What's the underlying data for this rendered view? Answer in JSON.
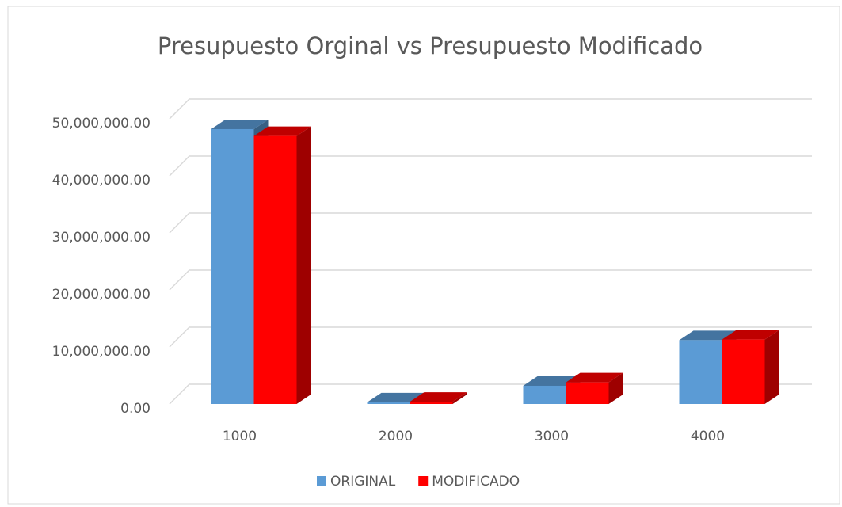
{
  "chart_data": {
    "type": "bar3d",
    "title": "Presupuesto Orginal vs Presupuesto Modificado",
    "categories": [
      "1000",
      "2000",
      "3000",
      "4000"
    ],
    "series": [
      {
        "name": "ORIGINAL",
        "color": "#5b9bd5",
        "values": [
          48200000,
          300000,
          3200000,
          11200000
        ]
      },
      {
        "name": "MODIFICADO",
        "color": "#ff0000",
        "values": [
          47000000,
          400000,
          3800000,
          11300000
        ]
      }
    ],
    "ylim": [
      0,
      50000000
    ],
    "yticks": [
      {
        "value": 0,
        "label": "0.00"
      },
      {
        "value": 10000000,
        "label": "10,000,000.00"
      },
      {
        "value": 20000000,
        "label": "20,000,000.00"
      },
      {
        "value": 30000000,
        "label": "30,000,000.00"
      },
      {
        "value": 40000000,
        "label": "40,000,000.00"
      },
      {
        "value": 50000000,
        "label": "50,000,000.00"
      }
    ],
    "grid": true,
    "legend": "bottom"
  }
}
